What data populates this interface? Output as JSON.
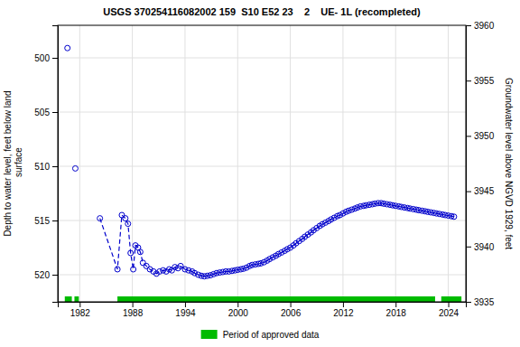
{
  "chart_data": {
    "type": "line",
    "title": "USGS 370254116082002 159  S10 E52 23    2    UE- 1L (recompleted)",
    "y_label": "Depth to water level, feet below land\n surface",
    "y2_label": "Groundwater level above NGVD 1929, feet",
    "xlim": [
      1979.5,
      2026.0
    ],
    "xticks": [
      1982,
      1988,
      1994,
      2000,
      2006,
      2012,
      2018,
      2024
    ],
    "ylim": [
      522.5,
      497.0
    ],
    "yticks": [
      500,
      505,
      510,
      515,
      520
    ],
    "y2lim": [
      3935.0,
      3960.0
    ],
    "y2ticks": [
      3935,
      3940,
      3945,
      3950,
      3955,
      3960
    ],
    "grid": true,
    "legend": "bottom",
    "series": [
      {
        "color": "#0000CC",
        "marker": "circle",
        "line_style": "none",
        "x": [
          1980.6,
          1981.5
        ],
        "values": [
          499.1,
          510.2
        ]
      },
      {
        "color": "#0000CC",
        "marker": "circle",
        "line_style": "dashed",
        "x": [
          1984.3,
          1986.3,
          1986.8,
          1987.2,
          1987.5,
          1987.8,
          1988.1,
          1988.35,
          1988.65,
          1988.9,
          1989.2,
          1989.6,
          1990.0,
          1990.4,
          1990.75,
          1991.1,
          1991.5,
          1991.85,
          1992.2,
          1992.5,
          1992.85,
          1993.2
        ],
        "values": [
          514.8,
          519.5,
          514.5,
          514.8,
          515.3,
          518.0,
          519.5,
          517.3,
          517.5,
          517.9,
          518.9,
          519.2,
          519.5,
          519.7,
          519.9,
          519.7,
          519.6,
          519.7,
          519.5,
          519.6,
          519.3,
          519.4
        ]
      },
      {
        "color": "#0000CC",
        "marker": "circle",
        "line_style": "solid",
        "x": [
          1993.5,
          1994.0,
          1994.4,
          1994.8,
          1995.1,
          1995.5,
          1995.85,
          1996.2,
          1996.55,
          1996.9,
          1997.25,
          1997.6,
          1997.95,
          1998.3,
          1998.65,
          1999.0,
          1999.35,
          1999.7,
          2000.0,
          2000.35,
          2000.65,
          2001.0,
          2001.35,
          2001.65,
          2002.0,
          2002.35,
          2002.65,
          2003.0,
          2003.35,
          2003.65,
          2004.0,
          2004.35,
          2004.65,
          2005.0,
          2005.35,
          2005.65,
          2006.0,
          2006.35,
          2006.65,
          2007.0,
          2007.35,
          2007.65,
          2008.0,
          2008.35,
          2008.65,
          2009.0,
          2009.35,
          2009.65,
          2010.0,
          2010.35,
          2010.65,
          2011.0,
          2011.35,
          2011.65,
          2012.0,
          2012.35,
          2012.65,
          2013.0,
          2013.35,
          2013.65,
          2014.0,
          2014.35,
          2014.65,
          2015.0,
          2015.35,
          2015.65,
          2016.0,
          2016.35,
          2016.65,
          2017.0,
          2017.35,
          2017.65,
          2018.0,
          2018.35,
          2018.65,
          2019.0,
          2019.35,
          2019.65,
          2020.0,
          2020.35,
          2020.65,
          2021.0,
          2021.35,
          2021.65,
          2022.0,
          2022.35,
          2022.65,
          2023.0,
          2023.35,
          2023.65,
          2024.0,
          2024.35,
          2024.65
        ],
        "values": [
          519.2,
          519.5,
          519.6,
          519.7,
          519.85,
          520.0,
          520.1,
          520.15,
          520.1,
          520.05,
          519.95,
          519.85,
          519.8,
          519.75,
          519.7,
          519.7,
          519.65,
          519.6,
          519.55,
          519.5,
          519.45,
          519.35,
          519.2,
          519.1,
          519.05,
          519.0,
          518.95,
          518.85,
          518.7,
          518.55,
          518.4,
          518.25,
          518.1,
          517.95,
          517.8,
          517.65,
          517.5,
          517.3,
          517.1,
          516.9,
          516.7,
          516.5,
          516.3,
          516.1,
          515.9,
          515.7,
          515.5,
          515.35,
          515.2,
          515.05,
          514.9,
          514.75,
          514.6,
          514.5,
          514.35,
          514.2,
          514.1,
          514.0,
          513.9,
          513.8,
          513.7,
          513.65,
          513.6,
          513.55,
          513.5,
          513.45,
          513.4,
          513.4,
          513.45,
          513.5,
          513.55,
          513.6,
          513.65,
          513.7,
          513.75,
          513.8,
          513.85,
          513.9,
          513.95,
          514.0,
          514.05,
          514.1,
          514.15,
          514.2,
          514.25,
          514.3,
          514.35,
          514.4,
          514.45,
          514.5,
          514.55,
          514.6,
          514.65
        ]
      }
    ],
    "spans": {
      "name": "Period of approved data",
      "color": "#00BB00",
      "ranges": [
        [
          1980.3,
          1981.1
        ],
        [
          1981.4,
          1981.9
        ],
        [
          1986.3,
          2022.5
        ],
        [
          2023.2,
          2025.5
        ]
      ]
    }
  }
}
